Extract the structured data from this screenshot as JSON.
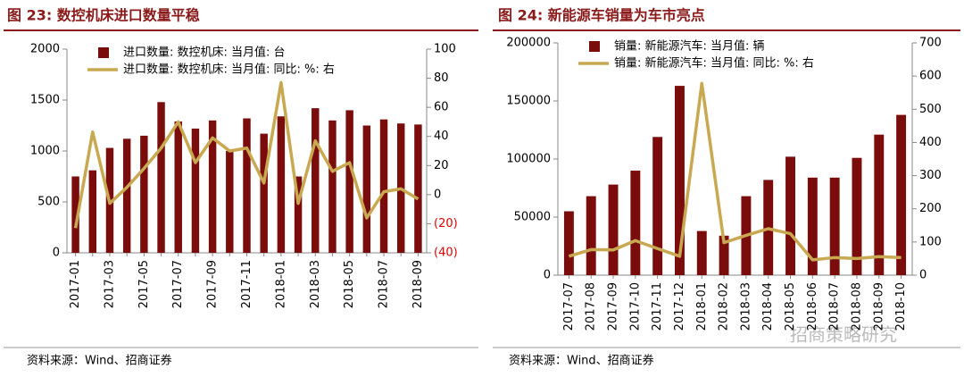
{
  "chart_data": [
    {
      "type": "bar",
      "title": "图 23: 数控机床进口数量平稳",
      "source": "资料来源：Wind、招商证券",
      "categories": [
        "2017-01",
        null,
        "2017-03",
        null,
        "2017-05",
        null,
        "2017-07",
        null,
        "2017-09",
        null,
        "2017-11",
        null,
        "2018-01",
        null,
        "2018-03",
        null,
        "2018-05",
        null,
        "2018-07",
        null,
        "2018-09"
      ],
      "series": [
        {
          "name": "进口数量: 数控机床: 当月值: 台",
          "type": "bar",
          "color": "#7b0c0c",
          "values": [
            750,
            810,
            1030,
            1120,
            1150,
            1480,
            1290,
            1220,
            1300,
            1000,
            1320,
            1170,
            1340,
            750,
            1420,
            1300,
            1400,
            1250,
            1310,
            1270,
            1260
          ]
        },
        {
          "name": "进口数量: 数控机床: 当月值: 同比: %: 右",
          "type": "line",
          "axis": "y2",
          "color": "#c8a951",
          "values": [
            -23,
            43,
            -6,
            5,
            18,
            32,
            50,
            22,
            39,
            30,
            32,
            8,
            77,
            -6,
            37,
            16,
            22,
            -16,
            2,
            4,
            -3
          ]
        }
      ],
      "ylim": [
        0,
        2000
      ],
      "yticks": [
        0,
        500,
        1000,
        1500,
        2000
      ],
      "y2lim": [
        -40,
        100
      ],
      "y2ticks": [
        {
          "value": -40,
          "label": "(40)"
        },
        {
          "value": -20,
          "label": "(20)"
        },
        0,
        20,
        40,
        60,
        80,
        100
      ],
      "y2tick_negative_color": "#e00000",
      "legend": "upper left"
    },
    {
      "type": "bar",
      "title": "图 24: 新能源车销量为车市亮点",
      "source": "资料来源：Wind、招商证券",
      "watermark": "招商策略研究",
      "categories": [
        "2017-07",
        "2017-08",
        "2017-09",
        "2017-10",
        "2017-11",
        "2017-12",
        "2018-01",
        "2018-02",
        "2018-03",
        "2018-04",
        "2018-05",
        "2018-06",
        "2018-07",
        "2018-08",
        "2018-09",
        "2018-10"
      ],
      "series": [
        {
          "name": "销量: 新能源汽车: 当月值: 辆",
          "type": "bar",
          "color": "#7b0c0c",
          "values": [
            55000,
            68000,
            78000,
            90000,
            119000,
            163000,
            38000,
            34000,
            68000,
            82000,
            102000,
            84000,
            84000,
            101000,
            121000,
            138000
          ]
        },
        {
          "name": "销量: 新能源汽车: 当月值: 同比: %: 右",
          "type": "line",
          "axis": "y2",
          "color": "#c8a951",
          "values": [
            57,
            77,
            76,
            104,
            80,
            57,
            578,
            98,
            120,
            140,
            125,
            46,
            53,
            50,
            56,
            53
          ]
        }
      ],
      "ylim": [
        0,
        200000
      ],
      "yticks": [
        0,
        50000,
        100000,
        150000,
        200000
      ],
      "y2lim": [
        0,
        700
      ],
      "y2ticks": [
        0,
        100,
        200,
        300,
        400,
        500,
        600,
        700
      ],
      "legend": "upper left"
    }
  ]
}
